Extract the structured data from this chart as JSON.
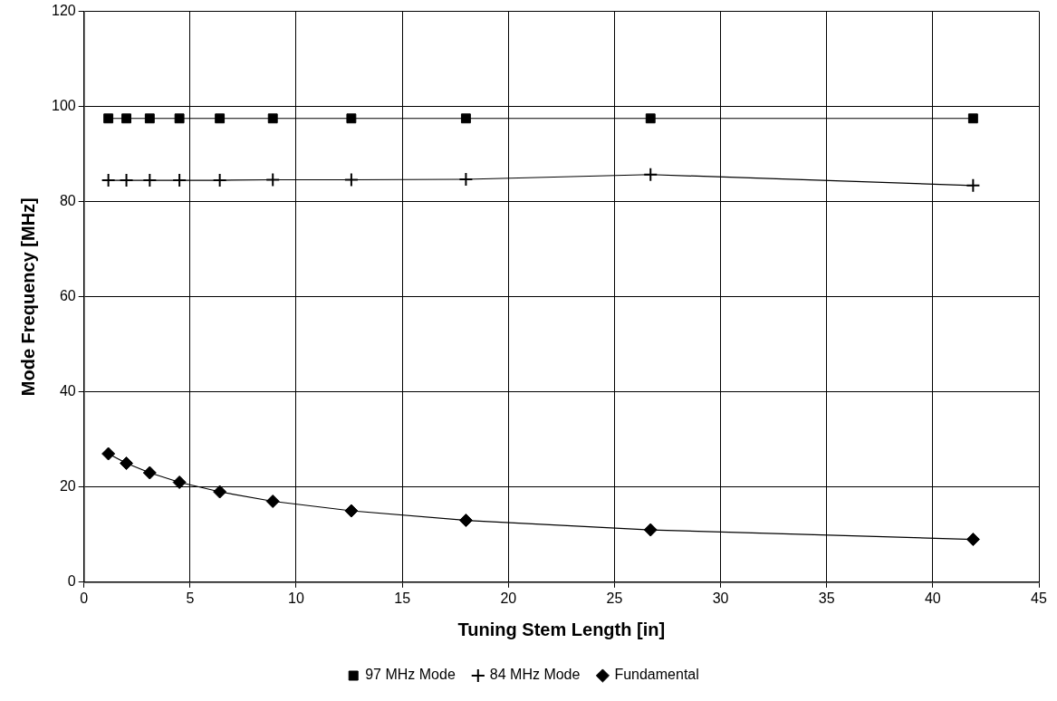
{
  "chart_data": {
    "type": "line",
    "xlabel": "Tuning Stem Length [in]",
    "ylabel": "Mode Frequency [MHz]",
    "x": [
      1.15,
      2.0,
      3.1,
      4.5,
      6.4,
      8.9,
      12.6,
      18.0,
      26.7,
      41.9
    ],
    "series": [
      {
        "name": "97 MHz Mode",
        "color": "#000000",
        "marker": "square",
        "values": [
          97.5,
          97.5,
          97.5,
          97.5,
          97.5,
          97.5,
          97.5,
          97.5,
          97.5,
          97.5
        ]
      },
      {
        "name": "84 MHz Mode",
        "color": "#000000",
        "marker": "cross",
        "values": [
          84.5,
          84.5,
          84.5,
          84.5,
          84.5,
          84.6,
          84.6,
          84.7,
          85.7,
          83.4
        ]
      },
      {
        "name": "Fundamental",
        "color": "#000000",
        "marker": "diamond",
        "values": [
          27,
          25,
          23,
          21,
          19,
          17,
          15,
          13,
          11,
          9
        ]
      }
    ],
    "xlim": [
      0,
      45
    ],
    "xticks": [
      0,
      5,
      10,
      15,
      20,
      25,
      30,
      35,
      40,
      45
    ],
    "ylim": [
      0,
      120
    ],
    "yticks": [
      0,
      20,
      40,
      60,
      80,
      100,
      120
    ],
    "grid": true,
    "legend": "bottom",
    "line_style": "solid"
  }
}
